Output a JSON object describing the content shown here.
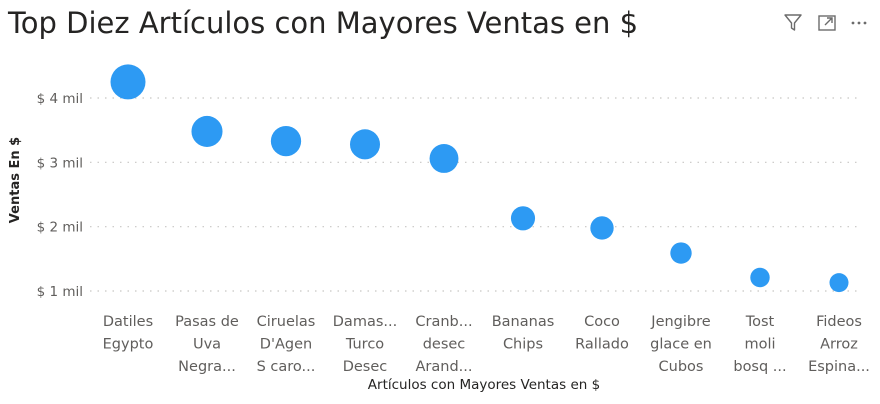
{
  "title": "Top Diez Artículos con Mayores Ventas en $",
  "toolbar": {
    "icons": [
      "filter-icon",
      "focus-mode-icon",
      "more-options-icon"
    ]
  },
  "chart_data": {
    "type": "scatter",
    "title": "Top Diez Artículos con Mayores Ventas en $",
    "xlabel": "Artículos con Mayores Ventas en $",
    "ylabel": "Ventas En $",
    "categories": [
      [
        "Datiles",
        "Egypto"
      ],
      [
        "Pasas de",
        "Uva",
        "Negra..."
      ],
      [
        "Ciruelas",
        "D'Agen",
        "S caro..."
      ],
      [
        "Damas...",
        "Turco",
        "Desec"
      ],
      [
        "Cranb...",
        "desec",
        "Arand..."
      ],
      [
        "Bananas",
        "Chips"
      ],
      [
        "Coco",
        "Rallado"
      ],
      [
        "Jengibre",
        "glace en",
        "Cubos"
      ],
      [
        "Tost",
        "moli",
        "bosq ..."
      ],
      [
        "Fideos",
        "Arroz",
        "Espina..."
      ]
    ],
    "values": [
      4250,
      3480,
      3330,
      3280,
      3060,
      2130,
      1980,
      1590,
      1210,
      1130
    ],
    "y_ticks": [
      1000,
      2000,
      3000,
      4000
    ],
    "y_tick_labels": [
      "$ 1 mil",
      "$ 2 mil",
      "$ 3 mil",
      "$ 4 mil"
    ],
    "ylim": [
      700,
      4600
    ],
    "grid": true,
    "color": "#2d9af3",
    "gridline_color": "#c8c6c4"
  }
}
